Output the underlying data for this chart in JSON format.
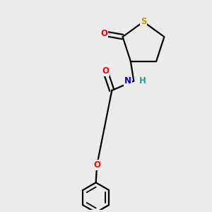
{
  "background_color": "#ebebeb",
  "atom_colors": {
    "S": "#b8a000",
    "O": "#ff0000",
    "N": "#0000e0",
    "H": "#20a090",
    "C": "#000000"
  },
  "bond_color": "#000000",
  "bond_width": 1.6,
  "figsize": [
    3.0,
    3.0
  ],
  "dpi": 100,
  "xlim": [
    0,
    10
  ],
  "ylim": [
    0,
    10
  ],
  "font_size": 8.5
}
